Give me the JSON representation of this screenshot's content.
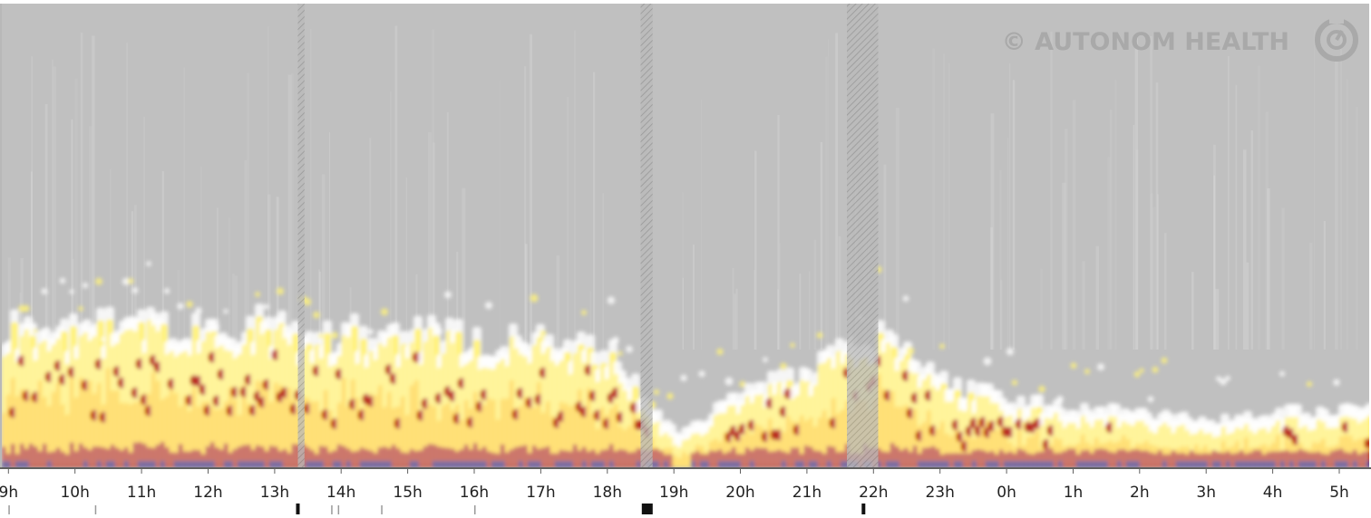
{
  "watermark": {
    "text": "© AUTONOM HEALTH",
    "icon": "autonom-health-logo-icon"
  },
  "colors": {
    "background": "#c0c0c0",
    "low": "#ffffff",
    "mid": "#fff27a",
    "high": "#ffc400",
    "peak": "#b01212",
    "extreme": "#3a2c9c",
    "hatch": "#8c8c8c",
    "axis": "#606060",
    "text": "#222222"
  },
  "chart_data": {
    "type": "heatmap",
    "title": "",
    "xlabel": "",
    "ylabel": "",
    "grid": false,
    "legend": "none",
    "x_ticks": [
      "9h",
      "10h",
      "11h",
      "12h",
      "13h",
      "14h",
      "15h",
      "16h",
      "17h",
      "18h",
      "19h",
      "20h",
      "21h",
      "22h",
      "23h",
      "0h",
      "1h",
      "2h",
      "3h",
      "4h",
      "5h"
    ],
    "x_range_hours": [
      8.9,
      29.45
    ],
    "artifact_bands_hours": [
      [
        13.35,
        13.45
      ],
      [
        18.5,
        18.68
      ],
      [
        21.6,
        22.07
      ]
    ],
    "event_markers_hours": [
      {
        "at": 9.0,
        "strength": "minor"
      },
      {
        "at": 10.3,
        "strength": "minor"
      },
      {
        "at": 13.35,
        "strength": "major"
      },
      {
        "at": 13.85,
        "strength": "minor"
      },
      {
        "at": 13.95,
        "strength": "minor"
      },
      {
        "at": 14.6,
        "strength": "minor"
      },
      {
        "at": 16.0,
        "strength": "minor"
      },
      {
        "at": 18.6,
        "strength": "block"
      },
      {
        "at": 21.85,
        "strength": "major"
      }
    ],
    "intensity_level_by_hour": [
      {
        "hour": 9,
        "level": 0.78
      },
      {
        "hour": 10,
        "level": 0.76
      },
      {
        "hour": 11,
        "level": 0.78
      },
      {
        "hour": 12,
        "level": 0.8
      },
      {
        "hour": 13,
        "level": 0.78
      },
      {
        "hour": 14,
        "level": 0.74
      },
      {
        "hour": 15,
        "level": 0.74
      },
      {
        "hour": 16,
        "level": 0.72
      },
      {
        "hour": 17,
        "level": 0.68
      },
      {
        "hour": 18,
        "level": 0.62
      },
      {
        "hour": 19,
        "level": 0.12
      },
      {
        "hour": 20,
        "level": 0.4
      },
      {
        "hour": 21,
        "level": 0.52
      },
      {
        "hour": 22,
        "level": 0.72
      },
      {
        "hour": 23,
        "level": 0.46
      },
      {
        "hour": 24,
        "level": 0.34
      },
      {
        "hour": 25,
        "level": 0.28
      },
      {
        "hour": 26,
        "level": 0.26
      },
      {
        "hour": 27,
        "level": 0.22
      },
      {
        "hour": 28,
        "level": 0.26
      },
      {
        "hour": 29,
        "level": 0.28
      }
    ]
  }
}
